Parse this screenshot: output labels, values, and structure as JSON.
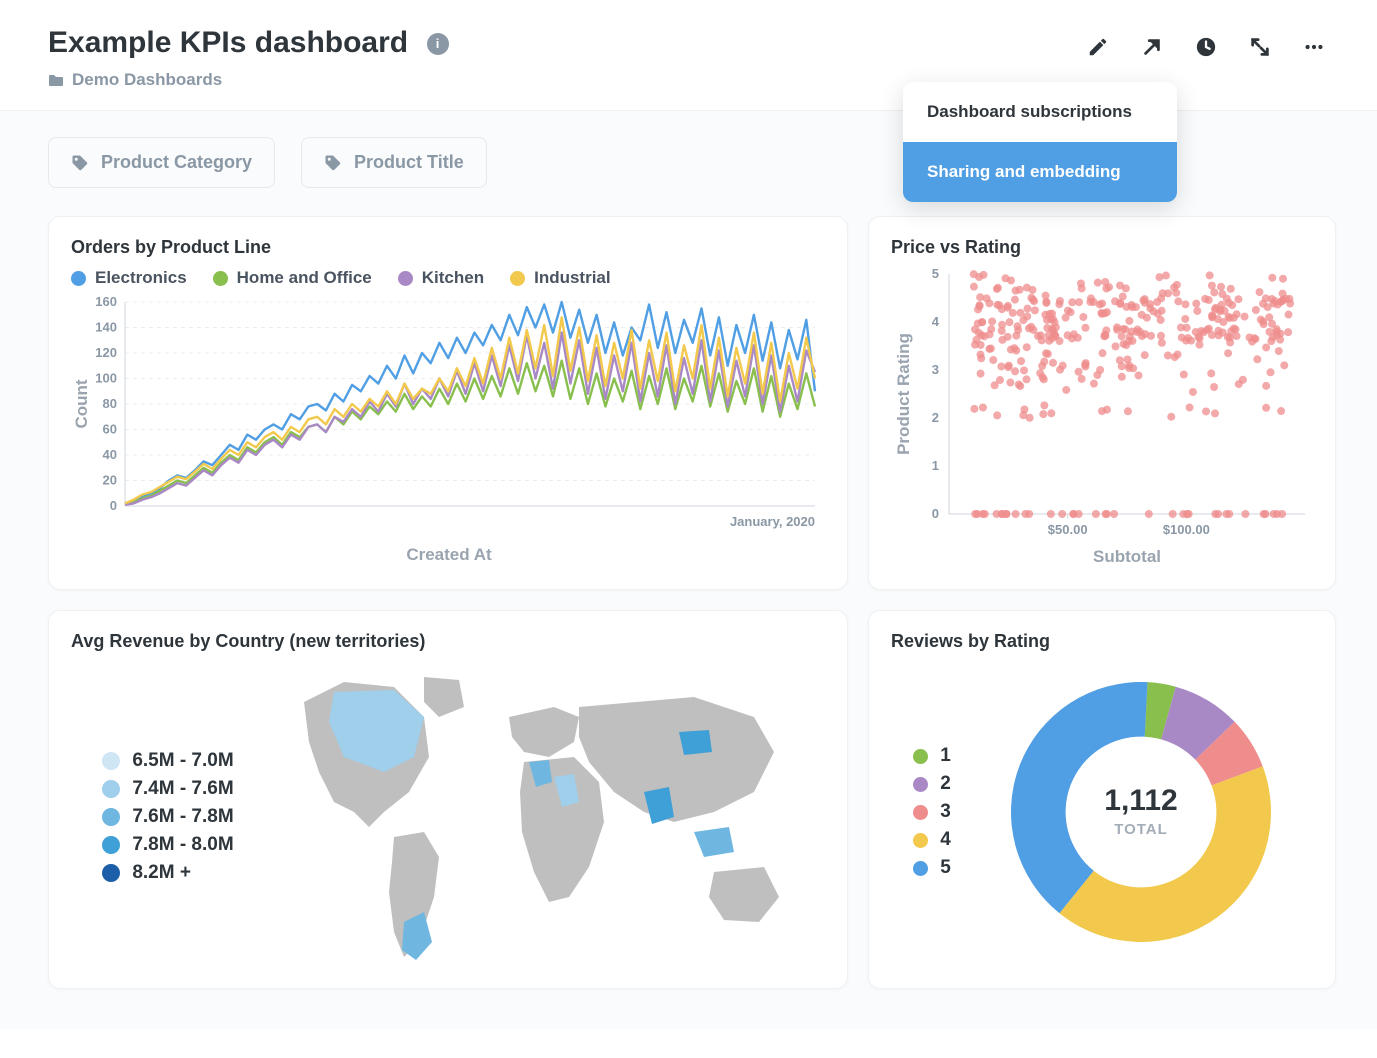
{
  "header": {
    "title": "Example KPIs dashboard",
    "breadcrumb": "Demo Dashboards"
  },
  "dropdown": {
    "item1": "Dashboard subscriptions",
    "item2": "Sharing and embedding",
    "active_bg": "#509ee3"
  },
  "filters": [
    {
      "label": "Product Category"
    },
    {
      "label": "Product Title"
    }
  ],
  "colors": {
    "text_dark": "#2e353b",
    "text_muted": "#8a97a4",
    "grid": "#e9edf0",
    "card_border": "#eef1f3",
    "body_bg": "#f9fbfc"
  },
  "orders_chart": {
    "title": "Orders by Product Line",
    "type": "line",
    "x_axis_title": "Created At",
    "y_axis_title": "Count",
    "x_end_label": "January, 2020",
    "ylim": [
      0,
      160
    ],
    "ytick_step": 20,
    "yticks": [
      "0",
      "20",
      "40",
      "60",
      "80",
      "100",
      "120",
      "140",
      "160"
    ],
    "series": [
      {
        "name": "Electronics",
        "color": "#509ee3",
        "values": [
          2,
          4,
          8,
          10,
          14,
          20,
          24,
          22,
          28,
          35,
          32,
          40,
          48,
          44,
          56,
          52,
          60,
          64,
          60,
          72,
          68,
          78,
          80,
          75,
          88,
          82,
          95,
          90,
          102,
          96,
          110,
          100,
          118,
          104,
          120,
          112,
          128,
          116,
          132,
          120,
          136,
          126,
          142,
          130,
          150,
          134,
          156,
          140,
          158,
          136,
          160,
          132,
          154,
          128,
          150,
          120,
          144,
          118,
          140,
          130,
          158,
          124,
          152,
          120,
          146,
          128,
          155,
          118,
          148,
          110,
          142,
          120,
          150,
          114,
          144,
          108,
          138,
          115,
          146,
          90
        ]
      },
      {
        "name": "Home and Office",
        "color": "#88bf4d",
        "values": [
          1,
          3,
          6,
          8,
          12,
          16,
          20,
          18,
          24,
          30,
          26,
          34,
          40,
          36,
          46,
          42,
          50,
          54,
          48,
          58,
          54,
          62,
          64,
          58,
          70,
          64,
          74,
          68,
          78,
          72,
          82,
          74,
          88,
          76,
          86,
          78,
          92,
          80,
          96,
          82,
          100,
          84,
          102,
          86,
          108,
          88,
          112,
          90,
          110,
          86,
          114,
          84,
          108,
          80,
          104,
          78,
          100,
          82,
          106,
          76,
          102,
          80,
          108,
          76,
          100,
          82,
          110,
          78,
          104,
          74,
          98,
          80,
          108,
          74,
          102,
          70,
          96,
          76,
          104,
          78
        ]
      },
      {
        "name": "Kitchen",
        "color": "#a989c5",
        "values": [
          1,
          2,
          5,
          7,
          10,
          14,
          18,
          16,
          22,
          28,
          24,
          32,
          38,
          34,
          44,
          40,
          48,
          52,
          46,
          56,
          52,
          62,
          64,
          58,
          70,
          66,
          76,
          70,
          82,
          74,
          88,
          78,
          96,
          80,
          92,
          84,
          100,
          86,
          106,
          88,
          112,
          90,
          118,
          94,
          126,
          98,
          134,
          100,
          128,
          92,
          136,
          96,
          130,
          88,
          124,
          84,
          118,
          90,
          128,
          82,
          120,
          86,
          126,
          80,
          116,
          88,
          130,
          82,
          122,
          78,
          114,
          86,
          126,
          80,
          118,
          74,
          110,
          82,
          122,
          105
        ]
      },
      {
        "name": "Industrial",
        "color": "#f2c94c",
        "values": [
          2,
          5,
          9,
          11,
          15,
          19,
          23,
          21,
          27,
          33,
          29,
          37,
          44,
          40,
          50,
          46,
          54,
          58,
          52,
          62,
          58,
          68,
          70,
          64,
          76,
          70,
          80,
          74,
          84,
          78,
          90,
          80,
          96,
          84,
          92,
          88,
          100,
          90,
          108,
          94,
          116,
          96,
          124,
          100,
          132,
          104,
          138,
          108,
          142,
          102,
          148,
          106,
          140,
          98,
          134,
          94,
          128,
          100,
          138,
          92,
          130,
          98,
          136,
          90,
          126,
          100,
          142,
          92,
          132,
          86,
          124,
          96,
          136,
          88,
          128,
          82,
          120,
          92,
          132,
          100
        ]
      }
    ]
  },
  "scatter_chart": {
    "title": "Price vs Rating",
    "type": "scatter",
    "x_axis_title": "Subtotal",
    "y_axis_title": "Product Rating",
    "xlim": [
      0,
      150
    ],
    "xticks": [
      {
        "v": 50,
        "label": "$50.00"
      },
      {
        "v": 100,
        "label": "$100.00"
      }
    ],
    "ylim": [
      0,
      5
    ],
    "yticks": [
      "0",
      "1",
      "2",
      "3",
      "4",
      "5"
    ],
    "point_color": "#ef8c8c",
    "point_opacity": 0.75,
    "point_radius": 4,
    "n_points": 380,
    "seed": 7
  },
  "map_chart": {
    "title": "Avg Revenue by Country (new territories)",
    "legend": [
      {
        "label": "6.5M - 7.0M",
        "color": "#cfe7f5"
      },
      {
        "label": "7.4M - 7.6M",
        "color": "#9fcfeb"
      },
      {
        "label": "7.6M - 7.8M",
        "color": "#6fb7e1"
      },
      {
        "label": "7.8M - 8.0M",
        "color": "#3f9fd7"
      },
      {
        "label": "8.2M +",
        "color": "#1c5fa8"
      }
    ],
    "land_color": "#bfbfbf",
    "ocean_color": "#ffffff"
  },
  "donut_chart": {
    "title": "Reviews by Rating",
    "type": "donut",
    "total_value": "1,112",
    "total_label": "TOTAL",
    "inner_ratio": 0.58,
    "segments": [
      {
        "label": "1",
        "color": "#88bf4d",
        "share": 0.035
      },
      {
        "label": "2",
        "color": "#a989c5",
        "share": 0.085
      },
      {
        "label": "3",
        "color": "#ef8c8c",
        "share": 0.065
      },
      {
        "label": "4",
        "color": "#f2c94c",
        "share": 0.415
      },
      {
        "label": "5",
        "color": "#509ee3",
        "share": 0.4
      }
    ]
  }
}
